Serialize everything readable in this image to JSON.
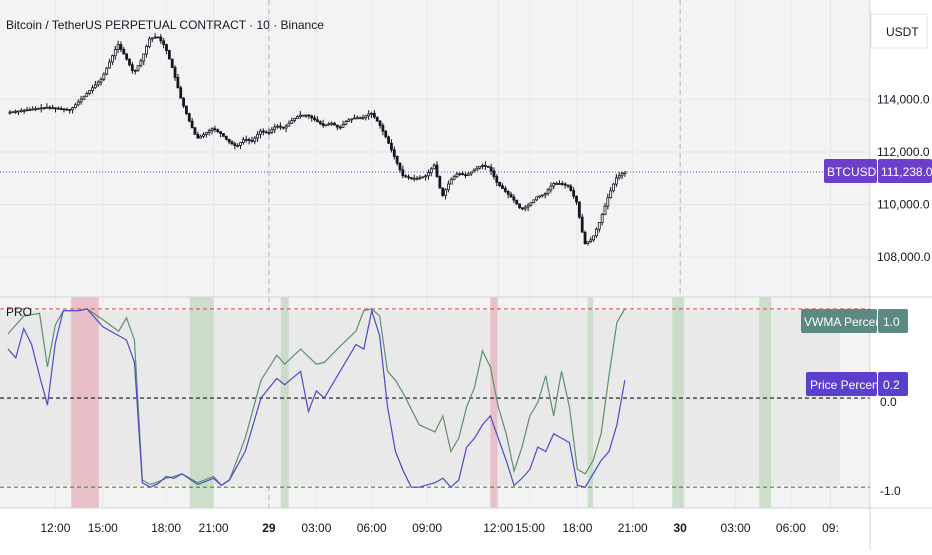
{
  "header": {
    "title": "Bitcoin / TetherUS PERPETUAL CONTRACT · 10 · Binance",
    "currency_button": "USDT"
  },
  "price_pane": {
    "y_ticks": [
      "114,000.0",
      "112,000.0",
      "110,000.0",
      "108,000.0"
    ],
    "y_tick_values": [
      114000,
      112000,
      110000,
      108000
    ],
    "ylim": [
      106600,
      117700
    ],
    "symbol_tag": "BTCUSDT.P",
    "last_price_label": "111,238.0",
    "last_price": 111238,
    "colors": {
      "candle": "#131722",
      "last_price_line": "#5b49c9",
      "tag_bg": "#6b3fcc"
    }
  },
  "indicator_pane": {
    "name": "PRO",
    "y_ticks": [
      "0.0",
      "-1.0"
    ],
    "y_tick_values": [
      0,
      -1
    ],
    "ylim": [
      -1.2,
      1.1
    ],
    "levels": [
      {
        "value": 1,
        "color": "#d9534f"
      },
      {
        "value": 0,
        "color": "#131722"
      },
      {
        "value": -1,
        "color": "#3c8c2a"
      }
    ],
    "vwma_tag": "VWMA Percentile",
    "vwma_value_label": "1.0",
    "price_tag": "Price Percentile",
    "price_value_label": "0.2",
    "colors": {
      "vwma_line": "#5f8f6e",
      "price_line": "#4d49c8",
      "vwma_tag_bg": "#5a8a80",
      "price_tag_bg": "#5b3fcf",
      "red_zone": "#e8b7bf",
      "green_zone": "#c6dbc2"
    }
  },
  "time_axis": {
    "labels": [
      "12:00",
      "15:00",
      "18:00",
      "21:00",
      "29",
      "03:00",
      "06:00",
      "09:00",
      "12:00",
      "15:00",
      "18:00",
      "21:00",
      "30",
      "03:00",
      "06:00",
      "09:"
    ],
    "bold": [
      "29",
      "30"
    ]
  },
  "chart_data": {
    "type": "line",
    "x_labels": [
      "12:00",
      "15:00",
      "18:00",
      "21:00",
      "29",
      "03:00",
      "06:00",
      "09:00",
      "12:00",
      "15:00",
      "18:00",
      "21:00",
      "30",
      "03:00",
      "06:00",
      "09:"
    ],
    "price_path": [
      [
        0,
        113500
      ],
      [
        5,
        113700
      ],
      [
        8,
        113600
      ],
      [
        10,
        114200
      ],
      [
        12,
        114800
      ],
      [
        14,
        116100
      ],
      [
        15,
        115600
      ],
      [
        16,
        115000
      ],
      [
        17,
        115500
      ],
      [
        18,
        116300
      ],
      [
        19,
        116400
      ],
      [
        20,
        116000
      ],
      [
        21,
        115100
      ],
      [
        22,
        114000
      ],
      [
        23,
        113200
      ],
      [
        24,
        112500
      ],
      [
        25,
        112700
      ],
      [
        26,
        112900
      ],
      [
        27,
        112700
      ],
      [
        28,
        112400
      ],
      [
        29,
        112200
      ],
      [
        30,
        112500
      ],
      [
        31,
        112400
      ],
      [
        32,
        112800
      ],
      [
        33,
        112700
      ],
      [
        34,
        113000
      ],
      [
        35,
        112900
      ],
      [
        36,
        113200
      ],
      [
        37,
        113400
      ],
      [
        38,
        113400
      ],
      [
        39,
        113200
      ],
      [
        40,
        113000
      ],
      [
        41,
        113100
      ],
      [
        42,
        112900
      ],
      [
        43,
        113200
      ],
      [
        44,
        113300
      ],
      [
        45,
        113300
      ],
      [
        46,
        113500
      ],
      [
        47,
        113100
      ],
      [
        48,
        112500
      ],
      [
        49,
        111800
      ],
      [
        50,
        111100
      ],
      [
        51,
        111000
      ],
      [
        52,
        111000
      ],
      [
        53,
        111100
      ],
      [
        54,
        111500
      ],
      [
        55,
        110300
      ],
      [
        56,
        110900
      ],
      [
        57,
        111200
      ],
      [
        58,
        111100
      ],
      [
        59,
        111300
      ],
      [
        60,
        111500
      ],
      [
        61,
        111400
      ],
      [
        62,
        110800
      ],
      [
        63,
        110500
      ],
      [
        64,
        110200
      ],
      [
        65,
        109800
      ],
      [
        66,
        110000
      ],
      [
        67,
        110300
      ],
      [
        68,
        110400
      ],
      [
        69,
        110800
      ],
      [
        70,
        110800
      ],
      [
        71,
        110700
      ],
      [
        72,
        110100
      ],
      [
        73,
        108500
      ],
      [
        74,
        108700
      ],
      [
        75,
        109400
      ],
      [
        76,
        110300
      ],
      [
        77,
        111000
      ],
      [
        78,
        111238
      ]
    ],
    "series": [
      {
        "name": "VWMA Percentile",
        "values": [
          [
            0,
            0.72
          ],
          [
            2,
            0.92
          ],
          [
            4,
            0.95
          ],
          [
            5,
            0.35
          ],
          [
            6,
            0.82
          ],
          [
            7,
            0.98
          ],
          [
            9,
            0.98
          ],
          [
            10,
            1.0
          ],
          [
            12,
            0.88
          ],
          [
            14,
            0.75
          ],
          [
            15,
            0.9
          ],
          [
            16,
            0.65
          ],
          [
            17,
            -0.92
          ],
          [
            18,
            -0.97
          ],
          [
            19,
            -0.94
          ],
          [
            20,
            -0.9
          ],
          [
            21,
            -0.88
          ],
          [
            22,
            -0.85
          ],
          [
            24,
            -0.95
          ],
          [
            26,
            -0.88
          ],
          [
            27,
            -0.98
          ],
          [
            28,
            -0.92
          ],
          [
            30,
            -0.45
          ],
          [
            32,
            0.2
          ],
          [
            34,
            0.48
          ],
          [
            35,
            0.38
          ],
          [
            37,
            0.55
          ],
          [
            39,
            0.38
          ],
          [
            40,
            0.4
          ],
          [
            42,
            0.58
          ],
          [
            44,
            0.75
          ],
          [
            45,
            0.98
          ],
          [
            46,
            1.0
          ],
          [
            47,
            0.92
          ],
          [
            48,
            0.3
          ],
          [
            49,
            0.2
          ],
          [
            50,
            0.05
          ],
          [
            52,
            -0.3
          ],
          [
            54,
            -0.38
          ],
          [
            55,
            -0.2
          ],
          [
            56,
            -0.6
          ],
          [
            57,
            -0.45
          ],
          [
            58,
            -0.1
          ],
          [
            59,
            0.12
          ],
          [
            60,
            0.53
          ],
          [
            61,
            0.35
          ],
          [
            62,
            -0.1
          ],
          [
            63,
            -0.4
          ],
          [
            64,
            -0.82
          ],
          [
            65,
            -0.55
          ],
          [
            66,
            -0.2
          ],
          [
            67,
            -0.05
          ],
          [
            68,
            0.25
          ],
          [
            69,
            -0.2
          ],
          [
            70,
            0.3
          ],
          [
            71,
            -0.1
          ],
          [
            72,
            -0.8
          ],
          [
            73,
            -0.85
          ],
          [
            74,
            -0.7
          ],
          [
            75,
            -0.4
          ],
          [
            76,
            0.25
          ],
          [
            77,
            0.85
          ],
          [
            78,
            1.0
          ]
        ]
      },
      {
        "name": "Price Percentile",
        "values": [
          [
            0,
            0.55
          ],
          [
            1,
            0.45
          ],
          [
            2,
            0.78
          ],
          [
            3,
            0.6
          ],
          [
            4,
            0.25
          ],
          [
            5,
            -0.08
          ],
          [
            6,
            0.62
          ],
          [
            7,
            0.98
          ],
          [
            9,
            0.98
          ],
          [
            10,
            1.0
          ],
          [
            12,
            0.8
          ],
          [
            14,
            0.7
          ],
          [
            15,
            0.65
          ],
          [
            16,
            0.4
          ],
          [
            17,
            -0.95
          ],
          [
            18,
            -1.0
          ],
          [
            19,
            -0.96
          ],
          [
            20,
            -0.88
          ],
          [
            21,
            -0.9
          ],
          [
            22,
            -0.85
          ],
          [
            24,
            -0.97
          ],
          [
            26,
            -0.9
          ],
          [
            27,
            -0.98
          ],
          [
            28,
            -0.92
          ],
          [
            30,
            -0.6
          ],
          [
            32,
            0.0
          ],
          [
            34,
            0.22
          ],
          [
            35,
            0.15
          ],
          [
            37,
            0.3
          ],
          [
            38,
            -0.15
          ],
          [
            39,
            0.08
          ],
          [
            40,
            0.0
          ],
          [
            42,
            0.3
          ],
          [
            44,
            0.6
          ],
          [
            45,
            0.55
          ],
          [
            46,
            0.98
          ],
          [
            47,
            0.7
          ],
          [
            48,
            -0.1
          ],
          [
            49,
            -0.6
          ],
          [
            50,
            -0.82
          ],
          [
            51,
            -1.0
          ],
          [
            52,
            -1.0
          ],
          [
            54,
            -0.95
          ],
          [
            55,
            -0.9
          ],
          [
            56,
            -1.0
          ],
          [
            57,
            -0.92
          ],
          [
            58,
            -0.55
          ],
          [
            59,
            -0.45
          ],
          [
            60,
            -0.3
          ],
          [
            61,
            -0.2
          ],
          [
            62,
            -0.45
          ],
          [
            63,
            -0.7
          ],
          [
            64,
            -0.98
          ],
          [
            65,
            -0.9
          ],
          [
            66,
            -0.8
          ],
          [
            67,
            -0.55
          ],
          [
            68,
            -0.6
          ],
          [
            69,
            -0.4
          ],
          [
            70,
            -0.45
          ],
          [
            71,
            -0.5
          ],
          [
            72,
            -0.98
          ],
          [
            73,
            -1.0
          ],
          [
            74,
            -0.85
          ],
          [
            75,
            -0.7
          ],
          [
            76,
            -0.6
          ],
          [
            77,
            -0.3
          ],
          [
            78,
            0.2
          ]
        ]
      }
    ],
    "zones": [
      {
        "type": "red",
        "from": 8.0,
        "to": 11.5
      },
      {
        "type": "green",
        "from": 23.0,
        "to": 26.0
      },
      {
        "type": "green",
        "from": 34.5,
        "to": 35.5
      },
      {
        "type": "red",
        "from": 61.0,
        "to": 61.9
      },
      {
        "type": "green",
        "from": 73.3,
        "to": 74.0
      },
      {
        "type": "green",
        "from": 84.0,
        "to": 85.5
      },
      {
        "type": "green",
        "from": 95.0,
        "to": 96.5
      }
    ],
    "xlim": [
      -1,
      109
    ],
    "tick_positions": [
      6,
      12,
      20,
      26,
      33,
      39,
      46,
      53,
      62,
      66,
      72,
      79,
      85,
      92,
      99,
      104
    ],
    "dashed_verticals": [
      33,
      85
    ]
  }
}
